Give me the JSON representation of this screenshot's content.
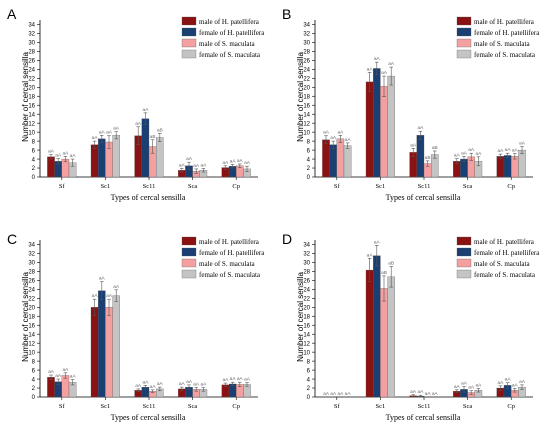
{
  "colors": {
    "male_hp": "#8b1212",
    "female_hp": "#1a3f73",
    "male_sm": "#f4a0a0",
    "female_sm": "#c4c4c4",
    "axis": "#000000",
    "error": "#555555",
    "sig": "#666666"
  },
  "chart_data": [
    {
      "type": "bar",
      "panel_label": "A",
      "xlabel": "Types of cercal sensilla",
      "ylabel": "Number of cercal sensilla",
      "ylim": [
        0,
        35
      ],
      "yticks": [
        0,
        2,
        4,
        6,
        8,
        10,
        12,
        14,
        16,
        18,
        20,
        22,
        24,
        26,
        28,
        30,
        32,
        34
      ],
      "categories": [
        "Sf",
        "Sc1",
        "Sc11",
        "Sca",
        "Cp"
      ],
      "legend_position": "top-right",
      "series": [
        {
          "name": "male of H. patellifera",
          "color_key": "male_hp",
          "values": [
            4.5,
            7.2,
            9.2,
            1.5,
            2.1
          ],
          "errors": [
            0.5,
            0.8,
            2.0,
            0.4,
            0.4
          ],
          "sig": [
            "aA",
            "aA",
            "aA",
            "aA",
            "aA"
          ]
        },
        {
          "name": "female of H. patellifera",
          "color_key": "female_hp",
          "values": [
            3.5,
            8.5,
            13.0,
            2.5,
            2.4
          ],
          "errors": [
            0.6,
            0.8,
            1.3,
            0.8,
            0.4
          ],
          "sig": [
            "aA",
            "aA",
            "aA",
            "aA",
            "aA"
          ]
        },
        {
          "name": "male of S. maculata",
          "color_key": "male_sm",
          "values": [
            4.0,
            7.8,
            6.8,
            1.3,
            2.5
          ],
          "errors": [
            0.6,
            1.4,
            1.5,
            0.5,
            0.4
          ],
          "sig": [
            "aA",
            "aA",
            "aB",
            "aA",
            "aA"
          ]
        },
        {
          "name": "female of S. maculata",
          "color_key": "female_sm",
          "values": [
            3.2,
            9.3,
            8.8,
            1.5,
            1.8
          ],
          "errors": [
            0.8,
            0.8,
            0.9,
            0.4,
            0.6
          ],
          "sig": [
            "aA",
            "aA",
            "aB",
            "aA",
            "aA"
          ]
        }
      ]
    },
    {
      "type": "bar",
      "panel_label": "B",
      "xlabel": "Types of cercal sensilla",
      "ylabel": "Number of cercal sensilla",
      "ylim": [
        0,
        35
      ],
      "yticks": [
        0,
        2,
        4,
        6,
        8,
        10,
        12,
        14,
        16,
        18,
        20,
        22,
        24,
        26,
        28,
        30,
        32,
        34
      ],
      "categories": [
        "Sf",
        "Sc1",
        "Sc11",
        "Sca",
        "Cp"
      ],
      "legend_position": "top-right",
      "series": [
        {
          "name": "male of H. patellifera",
          "color_key": "male_hp",
          "values": [
            8.3,
            21.2,
            5.5,
            3.5,
            4.6
          ],
          "errors": [
            0.9,
            2.1,
            0.9,
            0.6,
            0.5
          ],
          "sig": [
            "aA",
            "aA",
            "aA",
            "aA",
            "aA"
          ]
        },
        {
          "name": "female of H. patellifera",
          "color_key": "female_hp",
          "values": [
            7.2,
            24.2,
            9.3,
            4.0,
            4.8
          ],
          "errors": [
            0.8,
            1.4,
            0.9,
            0.6,
            0.5
          ],
          "sig": [
            "aA",
            "aA",
            "aA",
            "aA",
            "aA"
          ]
        },
        {
          "name": "male of S. maculata",
          "color_key": "male_sm",
          "values": [
            8.5,
            20.2,
            3.0,
            4.5,
            4.6
          ],
          "errors": [
            0.8,
            2.3,
            0.6,
            0.8,
            0.6
          ],
          "sig": [
            "aA",
            "aA",
            "aB",
            "aA",
            "aA"
          ]
        },
        {
          "name": "female of S. maculata",
          "color_key": "female_sm",
          "values": [
            7.0,
            22.5,
            5.0,
            3.5,
            6.0
          ],
          "errors": [
            0.6,
            2.0,
            0.8,
            1.0,
            0.8
          ],
          "sig": [
            "aA",
            "aA",
            "aB",
            "aA",
            "aA"
          ]
        }
      ]
    },
    {
      "type": "bar",
      "panel_label": "C",
      "xlabel": "Types of cercal sensilla",
      "ylabel": "Number of cercal sensilla",
      "ylim": [
        0,
        35
      ],
      "yticks": [
        0,
        2,
        4,
        6,
        8,
        10,
        12,
        14,
        16,
        18,
        20,
        22,
        24,
        26,
        28,
        30,
        32,
        34
      ],
      "categories": [
        "Sf",
        "Sc1",
        "Sc11",
        "Sca",
        "Cp"
      ],
      "legend_position": "top-right",
      "series": [
        {
          "name": "male of H. patellifera",
          "color_key": "male_hp",
          "values": [
            4.4,
            20.0,
            1.5,
            1.8,
            2.7
          ],
          "errors": [
            0.5,
            1.8,
            0.3,
            0.4,
            0.4
          ],
          "sig": [
            "aA",
            "aA",
            "aA",
            "aA",
            "aA"
          ]
        },
        {
          "name": "female of H. patellifera",
          "color_key": "female_hp",
          "values": [
            3.4,
            23.7,
            2.2,
            2.2,
            2.9
          ],
          "errors": [
            0.6,
            2.0,
            0.4,
            0.5,
            0.4
          ],
          "sig": [
            "aA",
            "aA",
            "aA",
            "aA",
            "aA"
          ]
        },
        {
          "name": "male of S. maculata",
          "color_key": "male_sm",
          "values": [
            4.8,
            20.0,
            1.3,
            1.7,
            2.8
          ],
          "errors": [
            0.6,
            1.8,
            0.3,
            0.4,
            0.5
          ],
          "sig": [
            "aA",
            "aA",
            "aA",
            "aA",
            "aA"
          ]
        },
        {
          "name": "female of S. maculata",
          "color_key": "female_sm",
          "values": [
            3.3,
            22.6,
            1.8,
            1.7,
            2.8
          ],
          "errors": [
            0.6,
            1.3,
            0.4,
            0.4,
            0.4
          ],
          "sig": [
            "aA",
            "aA",
            "aA",
            "aA",
            "aA"
          ]
        }
      ]
    },
    {
      "type": "bar",
      "panel_label": "D",
      "xlabel": "Types of cercal sensilla",
      "ylabel": "Number of cercal sensilla",
      "ylim": [
        0,
        35
      ],
      "yticks": [
        0,
        2,
        4,
        6,
        8,
        10,
        12,
        14,
        16,
        18,
        20,
        22,
        24,
        26,
        28,
        30,
        32,
        34
      ],
      "categories": [
        "Sf",
        "Sc1",
        "Sc11",
        "Sca",
        "Cp"
      ],
      "legend_position": "top-right",
      "series": [
        {
          "name": "male of H. patellifera",
          "color_key": "male_hp",
          "values": [
            0,
            28.3,
            0.3,
            1.3,
            2.0
          ],
          "errors": [
            0,
            2.6,
            0.2,
            0.3,
            0.5
          ],
          "sig": [
            "aA",
            "aA",
            "aA",
            "aA",
            "aA"
          ]
        },
        {
          "name": "female of H. patellifera",
          "color_key": "female_hp",
          "values": [
            0,
            31.5,
            0.2,
            1.7,
            2.6
          ],
          "errors": [
            0,
            2.3,
            0.2,
            0.6,
            0.6
          ],
          "sig": [
            "aA",
            "aA",
            "aA",
            "aA",
            "aA"
          ]
        },
        {
          "name": "male of S. maculata",
          "color_key": "male_sm",
          "values": [
            0,
            24.2,
            0,
            1.0,
            1.5
          ],
          "errors": [
            0,
            2.8,
            0,
            0.4,
            0.4
          ],
          "sig": [
            "aA",
            "aB",
            "aA",
            "aA",
            "aA"
          ]
        },
        {
          "name": "female of S. maculata",
          "color_key": "female_sm",
          "values": [
            0,
            26.8,
            0,
            1.5,
            2.2
          ],
          "errors": [
            0,
            2.3,
            0,
            0.4,
            0.5
          ],
          "sig": [
            "aA",
            "aB",
            "aA",
            "aA",
            "aA"
          ]
        }
      ]
    }
  ]
}
